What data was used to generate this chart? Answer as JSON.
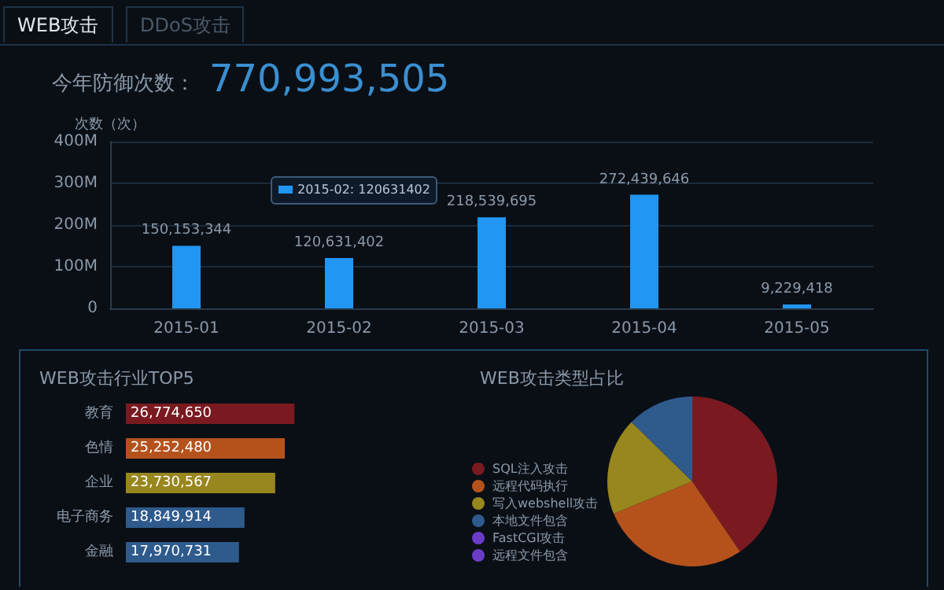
{
  "chart_data": [
    {
      "type": "bar",
      "title": "今年防御次数：",
      "subtitle": "770,993,505",
      "ylabel": "次数（次）",
      "annotations": [
        "WEB攻击",
        "DDoS攻击",
        "2015-02: 120631402"
      ],
      "categories": [
        "2015-01",
        "2015-02",
        "2015-03",
        "2015-04",
        "2015-05"
      ],
      "values": [
        150153344,
        120631402,
        218539695,
        272439646,
        9229418
      ],
      "value_labels": [
        "150,153,344",
        "120,631,402",
        "218,539,695",
        "272,439,646",
        "9,229,418"
      ],
      "color": "#2196f3",
      "ylim": [
        0,
        400000000
      ],
      "yticks": [
        {
          "value": 0,
          "label": "0"
        },
        {
          "value": 100000000,
          "label": "100M"
        },
        {
          "value": 200000000,
          "label": "200M"
        },
        {
          "value": 300000000,
          "label": "300M"
        },
        {
          "value": 400000000,
          "label": "400M"
        }
      ],
      "grid": "y"
    },
    {
      "type": "bar",
      "orientation": "horizontal",
      "title": "WEB攻击行业TOP5",
      "categories": [
        "教育",
        "色情",
        "企业",
        "电子商务",
        "金融"
      ],
      "values": [
        26774650,
        25252480,
        23730567,
        18849914,
        17970731
      ],
      "value_labels": [
        "26,774,650",
        "25,252,480",
        "23,730,567",
        "18,849,914",
        "17,970,731"
      ],
      "colors": [
        "#7a1a20",
        "#b5521c",
        "#98861e",
        "#2f5a8c",
        "#2f5a8c"
      ],
      "tick_labels": "y"
    },
    {
      "type": "pie",
      "title": "WEB攻击类型占比",
      "categories": [
        "SQL注入攻击",
        "远程代码执行",
        "写入webshell攻击",
        "本地文件包含",
        "FastCGI攻击",
        "远程文件包含"
      ],
      "values": [
        40.5,
        28.3,
        18.5,
        12.7,
        0,
        0
      ],
      "colors": [
        "#7a1a20",
        "#b5521c",
        "#98861e",
        "#2f5a8c",
        "#6a3cc8",
        "#6a3cc8"
      ],
      "legend": "left"
    }
  ]
}
